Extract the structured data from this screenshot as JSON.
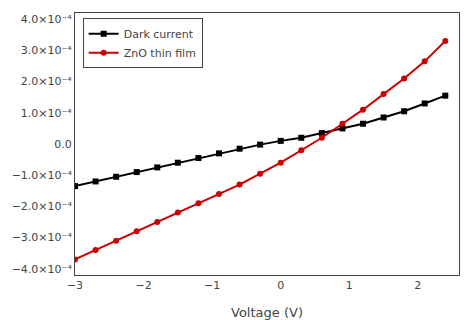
{
  "chart_data": {
    "type": "line",
    "title": "",
    "xlabel": "Voltage (V)",
    "ylabel": "",
    "series": [
      {
        "name": "Dark current",
        "color": "#000000",
        "marker": "square",
        "line_style": "solid",
        "x": [
          -3.0,
          -2.7,
          -2.4,
          -2.1,
          -1.8,
          -1.5,
          -1.2,
          -0.9,
          -0.6,
          -0.3,
          0.0,
          0.3,
          0.6,
          0.9,
          1.2,
          1.5,
          1.8,
          2.1,
          2.4
        ],
        "values": [
          -0.000135,
          -0.00012,
          -0.000105,
          -9e-05,
          -7.5e-05,
          -6e-05,
          -4.5e-05,
          -3e-05,
          -1.5e-05,
          -2e-06,
          1e-05,
          2e-05,
          3.5e-05,
          5e-05,
          6.5e-05,
          8.5e-05,
          0.000105,
          0.00013,
          0.000155
        ]
      },
      {
        "name": "ZnO thin film",
        "color": "#cc0000",
        "marker": "circle",
        "line_style": "solid",
        "x": [
          -3.0,
          -2.7,
          -2.4,
          -2.1,
          -1.8,
          -1.5,
          -1.2,
          -0.9,
          -0.6,
          -0.3,
          0.0,
          0.3,
          0.6,
          0.9,
          1.2,
          1.5,
          1.8,
          2.1,
          2.4
        ],
        "values": [
          -0.00037,
          -0.00034,
          -0.00031,
          -0.00028,
          -0.00025,
          -0.00022,
          -0.00019,
          -0.00016,
          -0.00013,
          -9.5e-05,
          -6e-05,
          -2e-05,
          2e-05,
          6.5e-05,
          0.00011,
          0.00016,
          0.00021,
          0.000265,
          0.00033
        ]
      }
    ],
    "xlim": [
      -3.0,
      2.6
    ],
    "ylim": [
      -0.00042,
      0.00042
    ],
    "xticks": [
      -3,
      -2,
      -1,
      0,
      1,
      2
    ],
    "yticks": [
      {
        "value": -0.0004,
        "label": "−4.0×10⁻⁴"
      },
      {
        "value": -0.0003,
        "label": "−3.0×10⁻⁴"
      },
      {
        "value": -0.0002,
        "label": "−2.0×10⁻⁴"
      },
      {
        "value": -0.0001,
        "label": "−1.0×10⁻⁴"
      },
      {
        "value": 0.0,
        "label": "0.0"
      },
      {
        "value": 0.0001,
        "label": "1.0×10⁻⁴"
      },
      {
        "value": 0.0002,
        "label": "2.0×10⁻⁴"
      },
      {
        "value": 0.0003,
        "label": "3.0×10⁻⁴"
      },
      {
        "value": 0.0004,
        "label": "4.0×10⁻⁴"
      }
    ],
    "grid": false,
    "legend": "upper left"
  }
}
